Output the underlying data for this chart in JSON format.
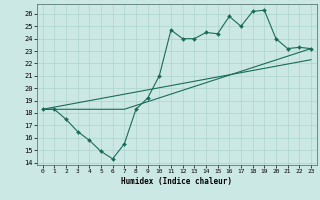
{
  "xlabel": "Humidex (Indice chaleur)",
  "background_color": "#cce8e4",
  "grid_color": "#aad4cc",
  "line_color": "#1a6b5a",
  "x_ticks": [
    0,
    1,
    2,
    3,
    4,
    5,
    6,
    7,
    8,
    9,
    10,
    11,
    12,
    13,
    14,
    15,
    16,
    17,
    18,
    19,
    20,
    21,
    22,
    23
  ],
  "ylim": [
    13.8,
    26.8
  ],
  "xlim": [
    -0.5,
    23.5
  ],
  "yticks": [
    14,
    15,
    16,
    17,
    18,
    19,
    20,
    21,
    22,
    23,
    24,
    25,
    26
  ],
  "line1_x": [
    0,
    1,
    2,
    3,
    4,
    5,
    6,
    7,
    8,
    9,
    10,
    11,
    12,
    13,
    14,
    15,
    16,
    17,
    18,
    19,
    20,
    21,
    22,
    23
  ],
  "line1_y": [
    18.3,
    18.3,
    17.5,
    16.5,
    15.8,
    14.9,
    14.3,
    15.5,
    18.3,
    19.2,
    21.0,
    24.7,
    24.0,
    24.0,
    24.5,
    24.4,
    25.8,
    25.0,
    26.2,
    26.3,
    24.0,
    23.2,
    23.3,
    23.2
  ],
  "line2_x": [
    0,
    7,
    23
  ],
  "line2_y": [
    18.3,
    18.3,
    23.2
  ],
  "line3_x": [
    0,
    23
  ],
  "line3_y": [
    18.3,
    22.3
  ]
}
